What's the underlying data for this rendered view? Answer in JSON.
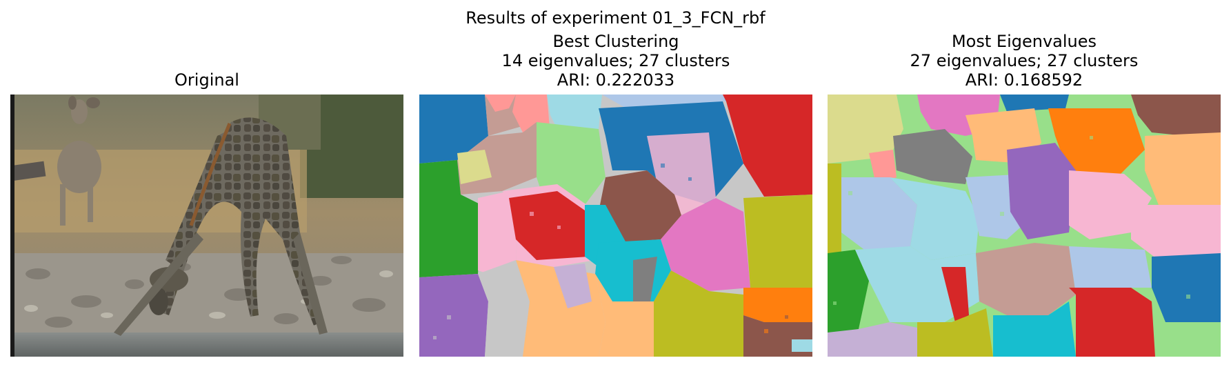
{
  "figure": {
    "suptitle": "Results of experiment 01_3_FCN_rbf"
  },
  "panels": [
    {
      "title_lines": [
        "Original"
      ],
      "image": "photo of a giraffe bending to drink water among rocks, with a kudu antelope in the background"
    },
    {
      "title_lines": [
        "Best Clustering",
        "14 eigenvalues; 27 clusters",
        "ARI: 0.222033"
      ],
      "eigenvalues": 14,
      "clusters": 27,
      "ari": 0.222033,
      "image": "segmentation map with colored cluster regions"
    },
    {
      "title_lines": [
        "Most Eigenvalues",
        "27 eigenvalues; 27 clusters",
        "ARI: 0.168592"
      ],
      "eigenvalues": 27,
      "clusters": 27,
      "ari": 0.168592,
      "image": "segmentation map with colored cluster regions"
    }
  ],
  "palette": [
    "#1f77b4",
    "#aec7e8",
    "#ff7f0e",
    "#ffbb78",
    "#2ca02c",
    "#98df8a",
    "#d62728",
    "#ff9896",
    "#9467bd",
    "#c5b0d5",
    "#8c564b",
    "#c49c94",
    "#e377c2",
    "#f7b6d2",
    "#7f7f7f",
    "#c7c7c7",
    "#bcbd22",
    "#dbdb8d",
    "#17becf",
    "#9edae5"
  ]
}
